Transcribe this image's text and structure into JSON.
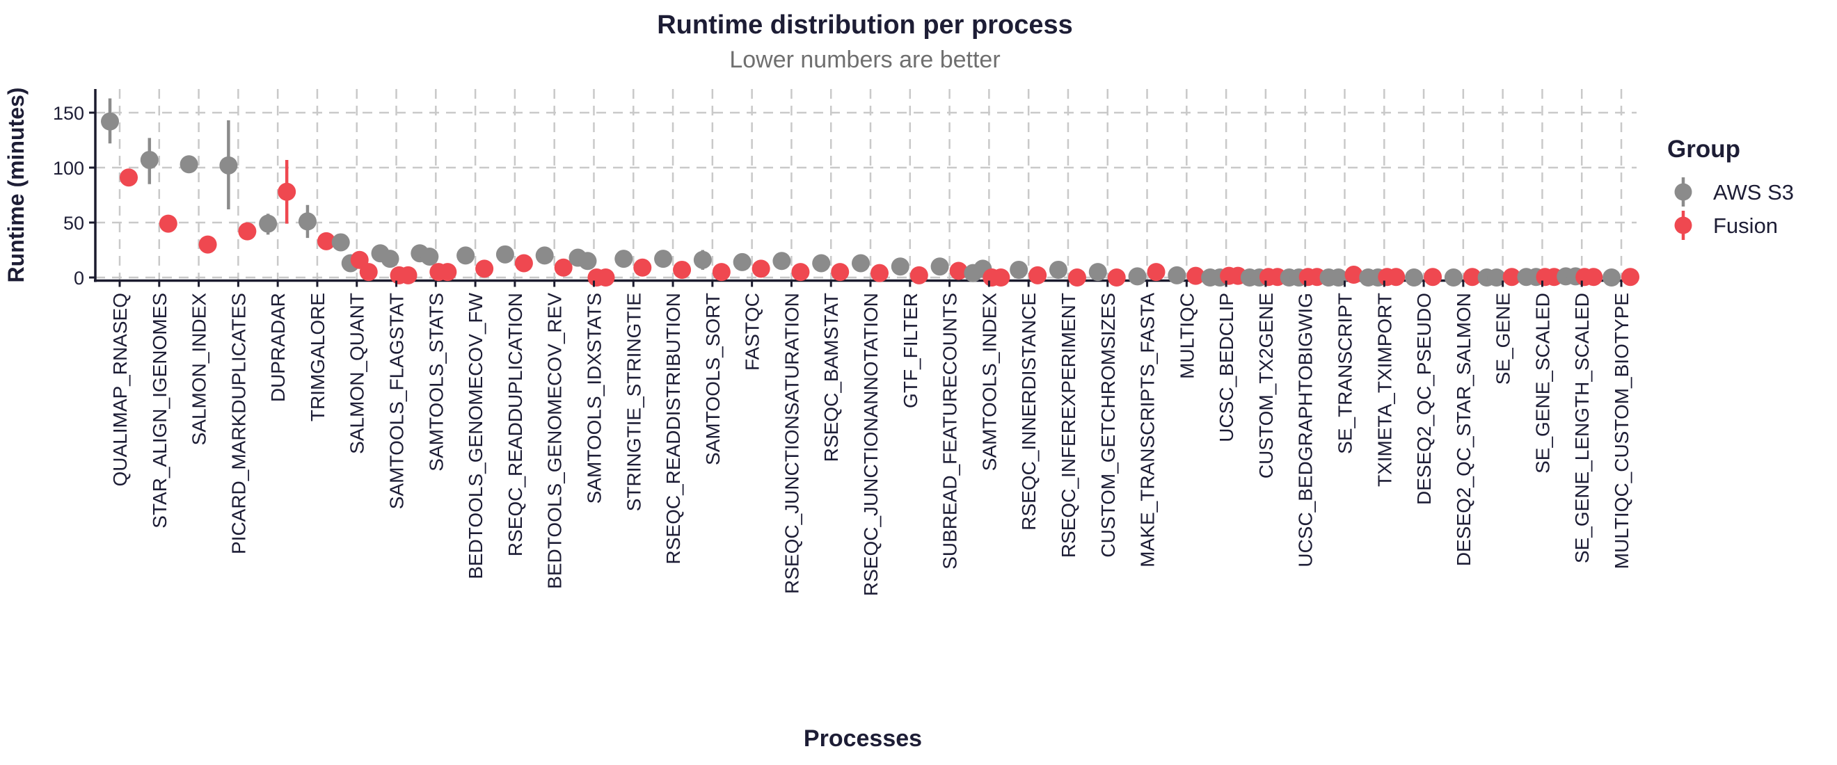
{
  "title": "Runtime distribution per process",
  "subtitle": "Lower numbers are better",
  "colors": {
    "text_dark": "#1d1d35",
    "subtitle_gray": "#6f6f6f",
    "grid": "#c9c9c9",
    "axis": "#1b1b2e",
    "aws_s3": "#8b8b8b",
    "fusion": "#ef4850"
  },
  "y_axis": {
    "label": "Runtime (minutes)",
    "ticks": [
      "0",
      "50",
      "100",
      "150"
    ]
  },
  "x_axis": {
    "label": "Processes"
  },
  "legend": {
    "title": "Group",
    "entries": [
      {
        "label": "AWS S3",
        "color": "#8b8b8b"
      },
      {
        "label": "Fusion",
        "color": "#ef4850"
      }
    ]
  },
  "chart_data": {
    "type": "scatter",
    "title": "Runtime distribution per process",
    "subtitle": "Lower numbers are better",
    "xlabel": "Processes",
    "ylabel": "Runtime (minutes)",
    "ylim": [
      -8,
      172
    ],
    "yticks": [
      0,
      50,
      100,
      150
    ],
    "grid": true,
    "legend_position": "right",
    "series_names": [
      "AWS S3",
      "Fusion"
    ],
    "categories": [
      "QUALIMAP_RNASEQ",
      "STAR_ALIGN_IGENOMES",
      "SALMON_INDEX",
      "PICARD_MARKDUPLICATES",
      "DUPRADAR",
      "TRIMGALORE",
      "SALMON_QUANT",
      "SAMTOOLS_FLAGSTAT",
      "SAMTOOLS_STATS",
      "BEDTOOLS_GENOMECOV_FW",
      "RSEQC_READDUPLICATION",
      "BEDTOOLS_GENOMECOV_REV",
      "SAMTOOLS_IDXSTATS",
      "STRINGTIE_STRINGTIE",
      "RSEQC_READDISTRIBUTION",
      "SAMTOOLS_SORT",
      "FASTQC",
      "RSEQC_JUNCTIONSATURATION",
      "RSEQC_BAMSTAT",
      "RSEQC_JUNCTIONANNOTATION",
      "GTF_FILTER",
      "SUBREAD_FEATURECOUNTS",
      "SAMTOOLS_INDEX",
      "RSEQC_INNERDISTANCE",
      "RSEQC_INFEREXPERIMENT",
      "CUSTOM_GETCHROMSIZES",
      "MAKE_TRANSCRIPTS_FASTA",
      "MULTIQC",
      "UCSC_BEDCLIP",
      "CUSTOM_TX2GENE",
      "UCSC_BEDGRAPHTOBIGWIG",
      "SE_TRANSCRIPT",
      "TXIMETA_TXIMPORT",
      "DESEQ2_QC_PSEUDO",
      "DESEQ2_QC_STAR_SALMON",
      "SE_GENE",
      "SE_GENE_SCALED",
      "SE_GENE_LENGTH_SCALED",
      "MULTIQC_CUSTOM_BIOTYPE"
    ],
    "points": [
      {
        "process": "QUALIMAP_RNASEQ",
        "aws_s3": {
          "values": [
            142
          ],
          "bar": [
            122,
            163
          ]
        },
        "fusion": {
          "values": [
            91
          ],
          "bar": [
            83,
            99
          ]
        }
      },
      {
        "process": "STAR_ALIGN_IGENOMES",
        "aws_s3": {
          "values": [
            107
          ],
          "bar": [
            85,
            127
          ]
        },
        "fusion": {
          "values": [
            49
          ],
          "bar": null
        }
      },
      {
        "process": "SALMON_INDEX",
        "aws_s3": {
          "values": [
            103
          ],
          "bar": null
        },
        "fusion": {
          "values": [
            30
          ],
          "bar": null
        }
      },
      {
        "process": "PICARD_MARKDUPLICATES",
        "aws_s3": {
          "values": [
            102
          ],
          "bar": [
            62,
            143
          ]
        },
        "fusion": {
          "values": [
            42
          ],
          "bar": null
        }
      },
      {
        "process": "DUPRADAR",
        "aws_s3": {
          "values": [
            49
          ],
          "bar": [
            39,
            58
          ]
        },
        "fusion": {
          "values": [
            78
          ],
          "bar": [
            49,
            107
          ]
        }
      },
      {
        "process": "TRIMGALORE",
        "aws_s3": {
          "values": [
            51
          ],
          "bar": [
            36,
            66
          ]
        },
        "fusion": {
          "values": [
            33
          ],
          "bar": null
        }
      },
      {
        "process": "SALMON_QUANT",
        "aws_s3": {
          "values": [
            32,
            13
          ],
          "bar": null
        },
        "fusion": {
          "values": [
            16,
            5
          ],
          "bar": null
        }
      },
      {
        "process": "SAMTOOLS_FLAGSTAT",
        "aws_s3": {
          "values": [
            22,
            17
          ],
          "bar": null
        },
        "fusion": {
          "values": [
            2,
            2
          ],
          "bar": null
        }
      },
      {
        "process": "SAMTOOLS_STATS",
        "aws_s3": {
          "values": [
            22,
            19
          ],
          "bar": null
        },
        "fusion": {
          "values": [
            5,
            5
          ],
          "bar": null
        }
      },
      {
        "process": "BEDTOOLS_GENOMECOV_FW",
        "aws_s3": {
          "values": [
            20
          ],
          "bar": null
        },
        "fusion": {
          "values": [
            8
          ],
          "bar": null
        }
      },
      {
        "process": "RSEQC_READDUPLICATION",
        "aws_s3": {
          "values": [
            21
          ],
          "bar": null
        },
        "fusion": {
          "values": [
            13
          ],
          "bar": null
        }
      },
      {
        "process": "BEDTOOLS_GENOMECOV_REV",
        "aws_s3": {
          "values": [
            20
          ],
          "bar": null
        },
        "fusion": {
          "values": [
            9
          ],
          "bar": null
        }
      },
      {
        "process": "SAMTOOLS_IDXSTATS",
        "aws_s3": {
          "values": [
            18,
            15
          ],
          "bar": null
        },
        "fusion": {
          "values": [
            0,
            0
          ],
          "bar": null
        }
      },
      {
        "process": "STRINGTIE_STRINGTIE",
        "aws_s3": {
          "values": [
            17
          ],
          "bar": null
        },
        "fusion": {
          "values": [
            9
          ],
          "bar": null
        }
      },
      {
        "process": "RSEQC_READDISTRIBUTION",
        "aws_s3": {
          "values": [
            17
          ],
          "bar": null
        },
        "fusion": {
          "values": [
            7
          ],
          "bar": null
        }
      },
      {
        "process": "SAMTOOLS_SORT",
        "aws_s3": {
          "values": [
            16
          ],
          "bar": [
            7,
            25
          ]
        },
        "fusion": {
          "values": [
            5
          ],
          "bar": null
        }
      },
      {
        "process": "FASTQC",
        "aws_s3": {
          "values": [
            14
          ],
          "bar": null
        },
        "fusion": {
          "values": [
            8
          ],
          "bar": null
        }
      },
      {
        "process": "RSEQC_JUNCTIONSATURATION",
        "aws_s3": {
          "values": [
            15
          ],
          "bar": null
        },
        "fusion": {
          "values": [
            5
          ],
          "bar": null
        }
      },
      {
        "process": "RSEQC_BAMSTAT",
        "aws_s3": {
          "values": [
            13
          ],
          "bar": null
        },
        "fusion": {
          "values": [
            5
          ],
          "bar": null
        }
      },
      {
        "process": "RSEQC_JUNCTIONANNOTATION",
        "aws_s3": {
          "values": [
            13
          ],
          "bar": null
        },
        "fusion": {
          "values": [
            4
          ],
          "bar": null
        }
      },
      {
        "process": "GTF_FILTER",
        "aws_s3": {
          "values": [
            10
          ],
          "bar": null
        },
        "fusion": {
          "values": [
            2
          ],
          "bar": null
        }
      },
      {
        "process": "SUBREAD_FEATURECOUNTS",
        "aws_s3": {
          "values": [
            10
          ],
          "bar": null
        },
        "fusion": {
          "values": [
            6
          ],
          "bar": null
        }
      },
      {
        "process": "SAMTOOLS_INDEX",
        "aws_s3": {
          "values": [
            4,
            8
          ],
          "bar": null
        },
        "fusion": {
          "values": [
            0,
            0
          ],
          "bar": null
        }
      },
      {
        "process": "RSEQC_INNERDISTANCE",
        "aws_s3": {
          "values": [
            7
          ],
          "bar": null
        },
        "fusion": {
          "values": [
            2
          ],
          "bar": null
        }
      },
      {
        "process": "RSEQC_INFEREXPERIMENT",
        "aws_s3": {
          "values": [
            7
          ],
          "bar": null
        },
        "fusion": {
          "values": [
            0
          ],
          "bar": null
        }
      },
      {
        "process": "CUSTOM_GETCHROMSIZES",
        "aws_s3": {
          "values": [
            5
          ],
          "bar": null
        },
        "fusion": {
          "values": [
            0
          ],
          "bar": null
        }
      },
      {
        "process": "MAKE_TRANSCRIPTS_FASTA",
        "aws_s3": {
          "values": [
            1
          ],
          "bar": null
        },
        "fusion": {
          "values": [
            5
          ],
          "bar": null
        }
      },
      {
        "process": "MULTIQC",
        "aws_s3": {
          "values": [
            2
          ],
          "bar": null
        },
        "fusion": {
          "values": [
            1.5
          ],
          "bar": null
        }
      },
      {
        "process": "UCSC_BEDCLIP",
        "aws_s3": {
          "values": [
            0,
            0
          ],
          "bar": null
        },
        "fusion": {
          "values": [
            1.5,
            1.5
          ],
          "bar": null
        }
      },
      {
        "process": "CUSTOM_TX2GENE",
        "aws_s3": {
          "values": [
            0,
            0
          ],
          "bar": null
        },
        "fusion": {
          "values": [
            0.5,
            0.5
          ],
          "bar": null
        }
      },
      {
        "process": "UCSC_BEDGRAPHTOBIGWIG",
        "aws_s3": {
          "values": [
            0,
            0
          ],
          "bar": null
        },
        "fusion": {
          "values": [
            0.5,
            0.5
          ],
          "bar": null
        }
      },
      {
        "process": "SE_TRANSCRIPT",
        "aws_s3": {
          "values": [
            0,
            0
          ],
          "bar": null
        },
        "fusion": {
          "values": [
            2.5
          ],
          "bar": null
        }
      },
      {
        "process": "TXIMETA_TXIMPORT",
        "aws_s3": {
          "values": [
            0,
            0
          ],
          "bar": null
        },
        "fusion": {
          "values": [
            0.5,
            0.5
          ],
          "bar": null
        }
      },
      {
        "process": "DESEQ2_QC_PSEUDO",
        "aws_s3": {
          "values": [
            0
          ],
          "bar": null
        },
        "fusion": {
          "values": [
            0.5
          ],
          "bar": null
        }
      },
      {
        "process": "DESEQ2_QC_STAR_SALMON",
        "aws_s3": {
          "values": [
            0
          ],
          "bar": null
        },
        "fusion": {
          "values": [
            0.5
          ],
          "bar": null
        }
      },
      {
        "process": "SE_GENE",
        "aws_s3": {
          "values": [
            0,
            0
          ],
          "bar": null
        },
        "fusion": {
          "values": [
            0.5
          ],
          "bar": null
        }
      },
      {
        "process": "SE_GENE_SCALED",
        "aws_s3": {
          "values": [
            0.5,
            0.5
          ],
          "bar": null
        },
        "fusion": {
          "values": [
            0.5,
            0.5
          ],
          "bar": null
        }
      },
      {
        "process": "SE_GENE_LENGTH_SCALED",
        "aws_s3": {
          "values": [
            1,
            1
          ],
          "bar": null
        },
        "fusion": {
          "values": [
            0.5,
            0.5
          ],
          "bar": null
        }
      },
      {
        "process": "MULTIQC_CUSTOM_BIOTYPE",
        "aws_s3": {
          "values": [
            0
          ],
          "bar": null
        },
        "fusion": {
          "values": [
            0.5
          ],
          "bar": null
        }
      }
    ]
  }
}
